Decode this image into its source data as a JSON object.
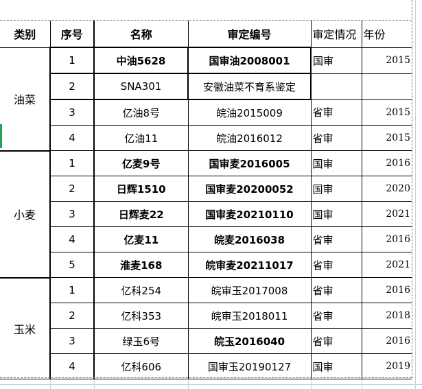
{
  "headers": {
    "category": "类别",
    "seq": "序号",
    "name": "名称",
    "code": "审定编号",
    "status": "审定情况",
    "year": "年份"
  },
  "groups": [
    {
      "category": "油菜",
      "rows": [
        {
          "seq": "1",
          "name": "中油5628",
          "code": "国审油2008001",
          "status": "国审",
          "year": "2015"
        },
        {
          "seq": "2",
          "name": "SNA301",
          "code": "安徽油菜不育系鉴定",
          "status": "",
          "year": ""
        },
        {
          "seq": "3",
          "name": "亿油8号",
          "code": "皖油2015009",
          "status": "省审",
          "year": "2015"
        },
        {
          "seq": "4",
          "name": "亿油11",
          "code": "皖油2016012",
          "status": "省审",
          "year": "2015"
        }
      ]
    },
    {
      "category": "小麦",
      "rows": [
        {
          "seq": "1",
          "name": "亿麦9号",
          "code": "国审麦2016005",
          "status": "国审",
          "year": "2016"
        },
        {
          "seq": "2",
          "name": "日辉1510",
          "code": "国审麦20200052",
          "status": "国审",
          "year": "2020"
        },
        {
          "seq": "3",
          "name": "日辉麦22",
          "code": "国审麦20210110",
          "status": "国审",
          "year": "2021"
        },
        {
          "seq": "4",
          "name": "亿麦11",
          "code": "皖麦2016038",
          "status": "省审",
          "year": "2016"
        },
        {
          "seq": "5",
          "name": "淮麦168",
          "code": "皖审麦20211017",
          "status": "省审",
          "year": "2021"
        }
      ]
    },
    {
      "category": "玉米",
      "rows": [
        {
          "seq": "1",
          "name": "亿科254",
          "code": "皖审玉2017008",
          "status": "省审",
          "year": "2016"
        },
        {
          "seq": "2",
          "name": "亿科353",
          "code": "皖审玉2018011",
          "status": "省审",
          "year": "2018"
        },
        {
          "seq": "3",
          "name": "绿玉6号",
          "code": "皖玉2016040",
          "status": "省审",
          "year": "2016"
        },
        {
          "seq": "4",
          "name": "亿科606",
          "code": "国审玉20190127",
          "status": "国审",
          "year": "2019"
        }
      ]
    }
  ]
}
